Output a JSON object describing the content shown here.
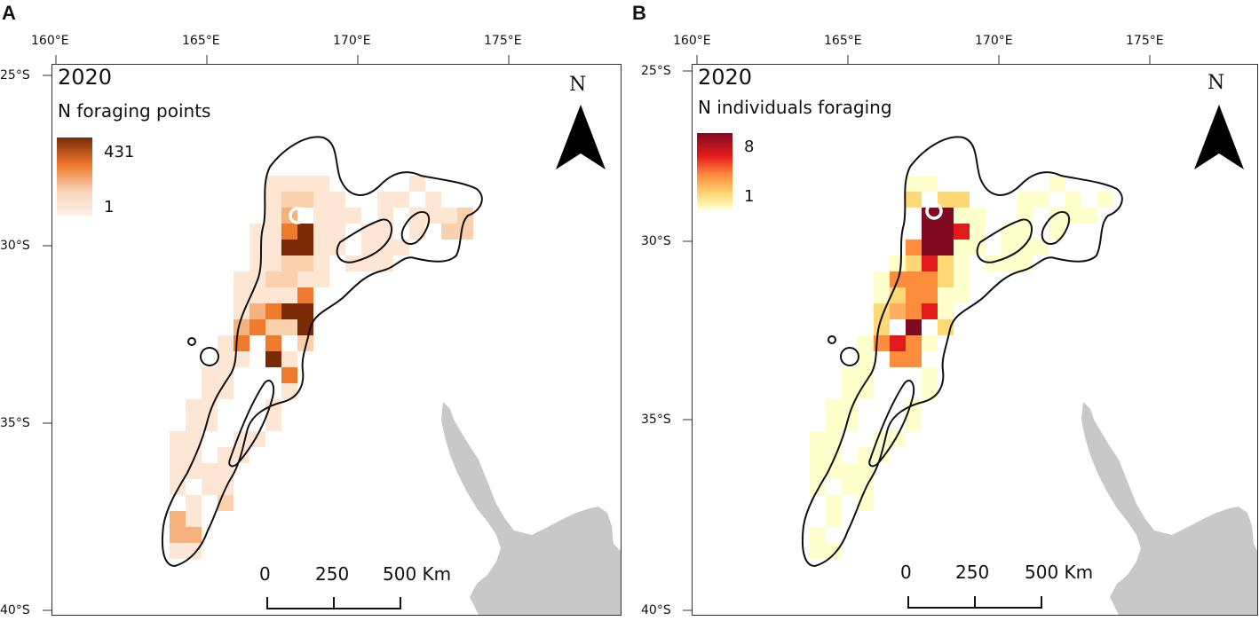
{
  "figure": {
    "panels": [
      {
        "letter": "A",
        "year": "2020",
        "legend_title": "N foraging points",
        "legend_max": "431",
        "legend_min": "1",
        "colors": {
          "low": "#fdf0e6",
          "mid": "#f7b26a",
          "high": "#7a2a05"
        },
        "north_label": "N",
        "scale_labels": [
          "0",
          "250",
          "500 Km"
        ]
      },
      {
        "letter": "B",
        "year": "2020",
        "legend_title": "N individuals foraging",
        "legend_max": "8",
        "legend_min": "1",
        "colors": {
          "low": "#ffffcc",
          "mid": "#fd8d3c",
          "high": "#7f0a21"
        },
        "north_label": "N",
        "scale_labels": [
          "0",
          "250",
          "500 Km"
        ]
      }
    ],
    "lon_ticks": [
      "160°E",
      "165°E",
      "170°E",
      "175°E"
    ],
    "lat_ticks": [
      "25°S",
      "30°S",
      "35°S",
      "40°S"
    ],
    "land_color": "#c8c8c8"
  }
}
